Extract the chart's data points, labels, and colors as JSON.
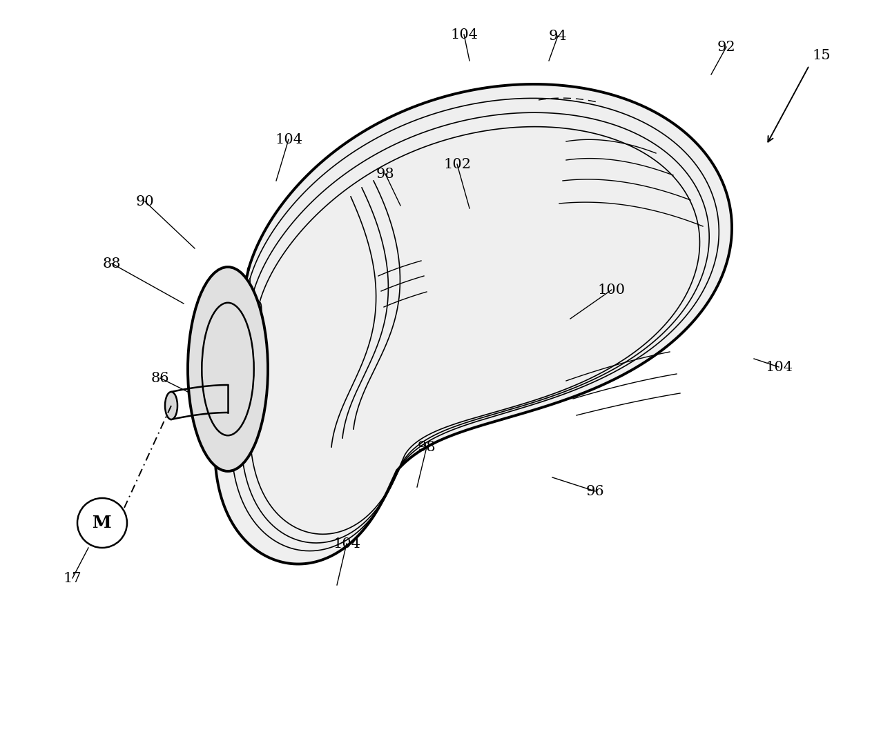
{
  "figsize": [
    12.76,
    10.77
  ],
  "dpi": 100,
  "bg": "#ffffff",
  "lw_thick": 2.8,
  "lw_med": 1.8,
  "lw_thin": 1.2,
  "font_size": 15
}
